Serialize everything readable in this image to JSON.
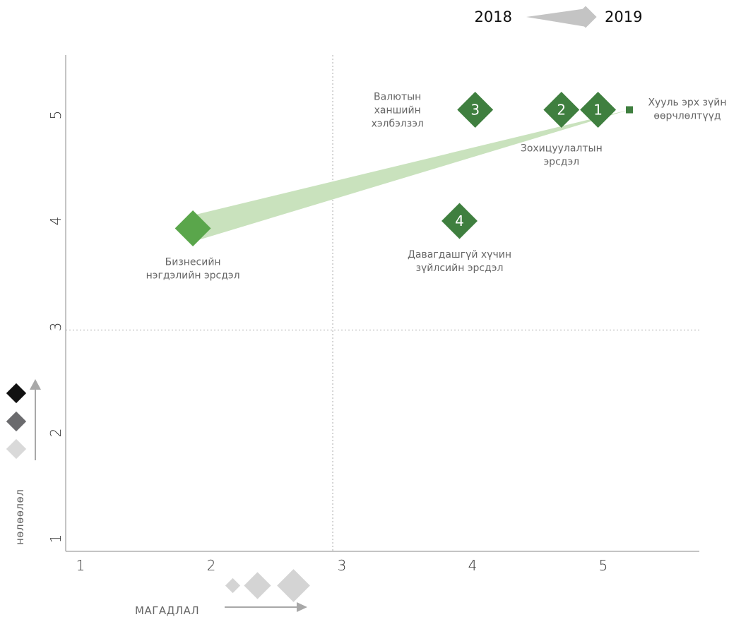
{
  "chart_data": {
    "type": "scatter",
    "title": "",
    "xlabel": "МАГАДЛАЛ",
    "ylabel": "нөлөөлөл",
    "x_ticks": [
      1,
      2,
      3,
      4,
      5
    ],
    "y_ticks": [
      1,
      2,
      3,
      4,
      5
    ],
    "xlim": [
      0.9,
      5.75
    ],
    "ylim": [
      0.9,
      5.6
    ],
    "grid": false,
    "threshold_lines": {
      "x": 2.93,
      "y": 2.97
    },
    "legend": {
      "position": "top-right",
      "from_label": "2018",
      "to_label": "2019"
    },
    "colors": {
      "point_2019": "#3f7f3f",
      "point_2018_moved": "#5aa64b",
      "trail": "#c9e2bd",
      "legend_grey": "#c4c4c4",
      "axis": "#888888",
      "threshold": "#aaaaaa"
    },
    "risks": [
      {
        "id": "1",
        "number": "1",
        "label_lines": [
          "Хууль эрх зүйн",
          "өөрчлөлтүүд"
        ],
        "x": 4.96,
        "y": 5.05,
        "x_2018": 5.2,
        "y_2018": 5.05,
        "label_anchor": "right"
      },
      {
        "id": "2",
        "number": "2",
        "label_lines": [
          "Зохицуулалтын",
          "эрсдэл"
        ],
        "x": 4.68,
        "y": 5.05,
        "label_anchor": "below"
      },
      {
        "id": "3",
        "number": "3",
        "label_lines": [
          "Валютын",
          "ханшийн",
          "хэлбэлзэл"
        ],
        "x": 4.02,
        "y": 5.05,
        "label_anchor": "left"
      },
      {
        "id": "4",
        "number": "4",
        "label_lines": [
          "Давагдашгүй хүчин",
          "зүйлсийн эрсдэл"
        ],
        "x": 3.9,
        "y": 4.0,
        "label_anchor": "below"
      },
      {
        "id": "business",
        "number": "",
        "label_lines": [
          "Бизнесийн",
          "нэгдэлийн эрсдэл"
        ],
        "x": 1.86,
        "y": 3.93,
        "label_anchor": "below"
      }
    ],
    "trail": {
      "from": [
        1.86,
        3.93
      ],
      "to": [
        5.2,
        5.05
      ]
    }
  },
  "legends": {
    "impact_scale_icons": [
      "diamond-black",
      "diamond-dark-grey",
      "diamond-light-grey"
    ],
    "probability_scale_icons": [
      "diamond-small",
      "diamond-medium",
      "diamond-large"
    ]
  }
}
